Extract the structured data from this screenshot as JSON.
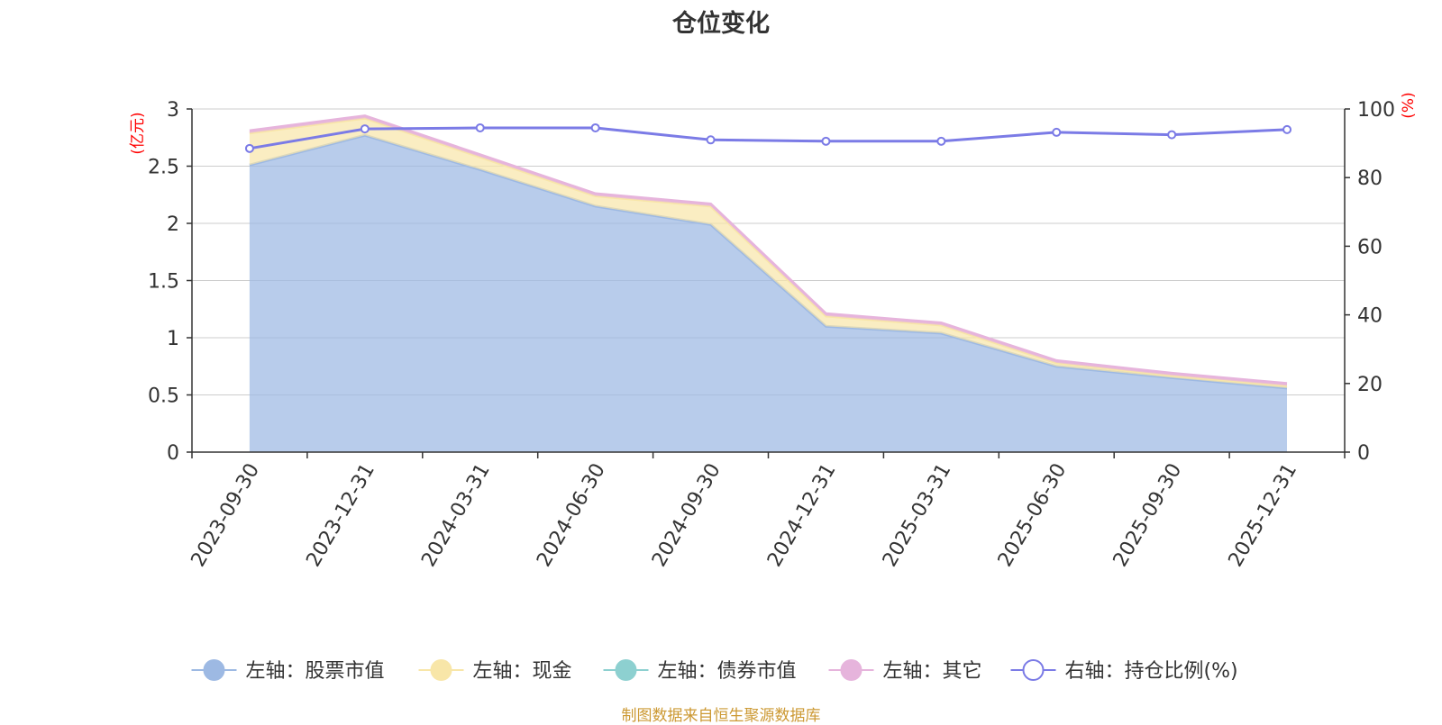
{
  "title": "仓位变化",
  "source": "制图数据来自恒生聚源数据库",
  "colors": {
    "stock": "#9db9e3",
    "cash": "#f8e6a8",
    "bond": "#8dd0d0",
    "other": "#e6b4dc",
    "ratio": "#7b7be6",
    "axis_unit": "#ff0000",
    "grid": "#cccccc",
    "axis": "#333333"
  },
  "chart_data": {
    "type": "area",
    "categories": [
      "2023-09-30",
      "2023-12-31",
      "2024-03-31",
      "2024-06-30",
      "2024-09-30",
      "2024-12-31",
      "2025-03-31",
      "2025-06-30",
      "2025-09-30",
      "2025-12-31"
    ],
    "left_axis": {
      "unit": "(亿元)",
      "min": 0,
      "max": 3,
      "ticks": [
        "0",
        "0.5",
        "1",
        "1.5",
        "2",
        "2.5",
        "3"
      ],
      "tick_values": [
        0,
        0.5,
        1,
        1.5,
        2,
        2.5,
        3
      ]
    },
    "right_axis": {
      "unit": "(%)",
      "min": 0,
      "max": 100,
      "ticks": [
        "0",
        "20",
        "40",
        "60",
        "80",
        "100"
      ],
      "tick_values": [
        0,
        20,
        40,
        60,
        80,
        100
      ]
    },
    "series": [
      {
        "key": "stock",
        "name": "左轴：股票市值",
        "axis": "left",
        "stacked": true,
        "values": [
          2.51,
          2.77,
          2.47,
          2.15,
          1.99,
          1.1,
          1.04,
          0.75,
          0.65,
          0.56
        ]
      },
      {
        "key": "cash",
        "name": "左轴：现金",
        "axis": "left",
        "stacked": true,
        "values": [
          0.28,
          0.15,
          0.11,
          0.09,
          0.16,
          0.09,
          0.07,
          0.03,
          0.02,
          0.02
        ]
      },
      {
        "key": "bond",
        "name": "左轴：债券市值",
        "axis": "left",
        "stacked": true,
        "values": [
          0,
          0,
          0,
          0,
          0,
          0,
          0,
          0,
          0,
          0
        ]
      },
      {
        "key": "other",
        "name": "左轴：其它",
        "axis": "left",
        "stacked": true,
        "values": [
          0.02,
          0.02,
          0.02,
          0.02,
          0.02,
          0.02,
          0.02,
          0.02,
          0.02,
          0.02
        ]
      },
      {
        "key": "ratio",
        "name": "右轴：持仓比例(%)",
        "axis": "right",
        "stacked": false,
        "values": [
          88.5,
          94.2,
          94.5,
          94.5,
          91.0,
          90.6,
          90.6,
          93.2,
          92.5,
          94.0
        ]
      }
    ]
  }
}
